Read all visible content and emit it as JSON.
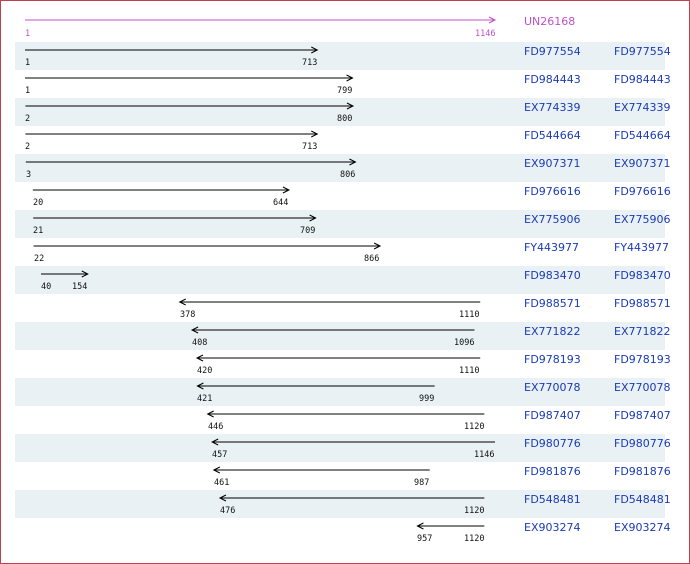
{
  "axis": {
    "min": 1,
    "max": 1146
  },
  "colors": {
    "reference": "#c050c8",
    "link": "#1a3bb5",
    "row_shade": "#e9f1f5",
    "arrow": "#000000",
    "border": "#c04050"
  },
  "reference": {
    "id": "UN26168",
    "start": 1,
    "end": 1146,
    "direction": "forward"
  },
  "alignments": [
    {
      "id": "FD977554",
      "id2": "FD977554",
      "start": 1,
      "end": 713,
      "direction": "forward"
    },
    {
      "id": "FD984443",
      "id2": "FD984443",
      "start": 1,
      "end": 799,
      "direction": "forward"
    },
    {
      "id": "EX774339",
      "id2": "EX774339",
      "start": 2,
      "end": 800,
      "direction": "forward"
    },
    {
      "id": "FD544664",
      "id2": "FD544664",
      "start": 2,
      "end": 713,
      "direction": "forward"
    },
    {
      "id": "EX907371",
      "id2": "EX907371",
      "start": 3,
      "end": 806,
      "direction": "forward"
    },
    {
      "id": "FD976616",
      "id2": "FD976616",
      "start": 20,
      "end": 644,
      "direction": "forward"
    },
    {
      "id": "EX775906",
      "id2": "EX775906",
      "start": 21,
      "end": 709,
      "direction": "forward"
    },
    {
      "id": "FY443977",
      "id2": "FY443977",
      "start": 22,
      "end": 866,
      "direction": "forward"
    },
    {
      "id": "FD983470",
      "id2": "FD983470",
      "start": 40,
      "end": 154,
      "direction": "forward"
    },
    {
      "id": "FD988571",
      "id2": "FD988571",
      "start": 378,
      "end": 1110,
      "direction": "reverse"
    },
    {
      "id": "EX771822",
      "id2": "EX771822",
      "start": 408,
      "end": 1096,
      "direction": "reverse"
    },
    {
      "id": "FD978193",
      "id2": "FD978193",
      "start": 420,
      "end": 1110,
      "direction": "reverse"
    },
    {
      "id": "EX770078",
      "id2": "EX770078",
      "start": 421,
      "end": 999,
      "direction": "reverse"
    },
    {
      "id": "FD987407",
      "id2": "FD987407",
      "start": 446,
      "end": 1120,
      "direction": "reverse"
    },
    {
      "id": "FD980776",
      "id2": "FD980776",
      "start": 457,
      "end": 1146,
      "direction": "reverse"
    },
    {
      "id": "FD981876",
      "id2": "FD981876",
      "start": 461,
      "end": 987,
      "direction": "reverse"
    },
    {
      "id": "FD548481",
      "id2": "FD548481",
      "start": 476,
      "end": 1120,
      "direction": "reverse"
    },
    {
      "id": "EX903274",
      "id2": "EX903274",
      "start": 957,
      "end": 1120,
      "direction": "reverse"
    }
  ]
}
